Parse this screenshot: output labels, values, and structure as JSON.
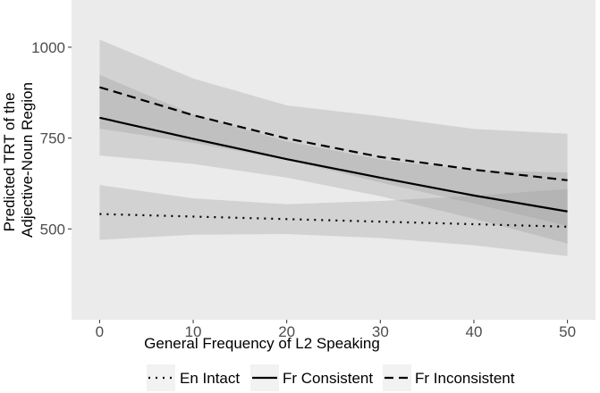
{
  "chart_data": {
    "type": "line",
    "xlabel": "General Frequency of L2 Speaking",
    "ylabel": [
      "Predicted TRT of the",
      "Adjective-Noun Region"
    ],
    "xlim": [
      -3,
      53
    ],
    "ylim": [
      250,
      1130
    ],
    "xticks": [
      0,
      10,
      20,
      30,
      40,
      50
    ],
    "yticks": [
      500,
      750,
      1000
    ],
    "grid": false,
    "legend_position": "bottom",
    "colors": {
      "panel": "#ebebeb",
      "band": "#999999",
      "line": "#000000",
      "tick": "#333333"
    },
    "series": [
      {
        "name": "En Intact",
        "dash": "dotted",
        "x": [
          0,
          50
        ],
        "y": [
          541,
          506
        ],
        "band_x": [
          0,
          10,
          20,
          30,
          40,
          50
        ],
        "band_lower": [
          470,
          484,
          486,
          475,
          455,
          425
        ],
        "band_upper": [
          621,
          584,
          568,
          577,
          591,
          610
        ]
      },
      {
        "name": "Fr Consistent",
        "dash": "solid",
        "x": [
          0,
          10,
          20,
          30,
          40,
          50
        ],
        "y": [
          806,
          748,
          692,
          641,
          592,
          548
        ],
        "band_x": [
          0,
          10,
          20,
          30,
          40,
          50
        ],
        "band_lower": [
          702,
          679,
          641,
          590,
          528,
          460
        ],
        "band_upper": [
          924,
          815,
          741,
          691,
          661,
          655
        ]
      },
      {
        "name": "Fr Inconsistent",
        "dash": "dashed",
        "x": [
          0,
          10,
          20,
          30,
          40,
          50
        ],
        "y": [
          890,
          813,
          749,
          698,
          663,
          634
        ],
        "band_x": [
          0,
          10,
          20,
          30,
          40,
          50
        ],
        "band_lower": [
          776,
          737,
          690,
          628,
          570,
          508
        ],
        "band_upper": [
          1021,
          914,
          840,
          810,
          775,
          762
        ]
      }
    ]
  }
}
